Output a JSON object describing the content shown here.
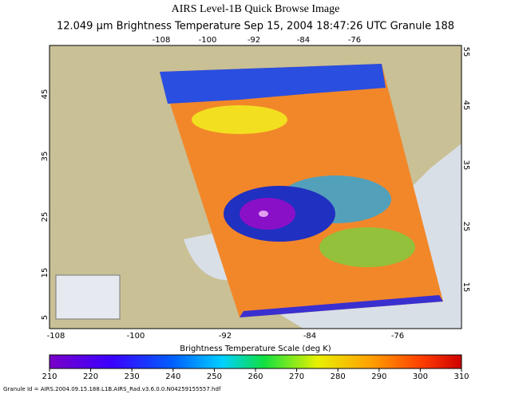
{
  "header": {
    "title": "AIRS Level-1B Quick Browse Image",
    "subtitle": "12.049 μm Brightness Temperature   Sep 15, 2004 18:47:26 UTC   Granule 188"
  },
  "map": {
    "top_labels": [
      "-108",
      "-100",
      "-92",
      "-84",
      "-76"
    ],
    "left_labels": [
      "45",
      "35",
      "25",
      "15",
      "5"
    ],
    "right_labels": [
      "55",
      "45",
      "35",
      "25",
      "15"
    ],
    "bottom_labels": [
      "-108",
      "-100",
      "-92",
      "-84",
      "-76"
    ]
  },
  "scale": {
    "title": "Brightness Temperature Scale (deg K)",
    "ticks": [
      210,
      220,
      230,
      240,
      250,
      260,
      270,
      280,
      290,
      300,
      310
    ]
  },
  "footer": "Granule Id = AIRS.2004.09.15.188.L1B.AIRS_Rad.v3.6.0.0.N04259155557.hdf"
}
